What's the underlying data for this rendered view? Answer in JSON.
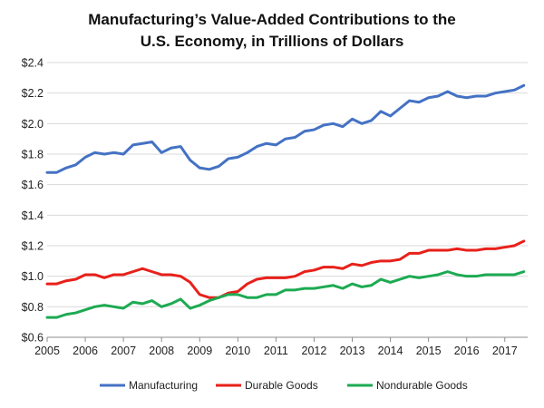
{
  "chart_data": {
    "type": "line",
    "title": [
      "Manufacturing’s Value-Added Contributions to the",
      "U.S. Economy, in Trillions of Dollars"
    ],
    "xlabel": "",
    "ylabel": "",
    "xlim": [
      2005,
      2017.6
    ],
    "ylim": [
      0.6,
      2.4
    ],
    "grid": true,
    "legend_position": "bottom",
    "x_ticks": [
      2005,
      2006,
      2007,
      2008,
      2009,
      2010,
      2011,
      2012,
      2013,
      2014,
      2015,
      2016,
      2017
    ],
    "x_tick_labels": [
      "2005",
      "2006",
      "2007",
      "2008",
      "2009",
      "2010",
      "2011",
      "2012",
      "2013",
      "2014",
      "2015",
      "2016",
      "2017"
    ],
    "y_ticks": [
      0.6,
      0.8,
      1.0,
      1.2,
      1.4,
      1.6,
      1.8,
      2.0,
      2.2,
      2.4
    ],
    "y_tick_labels": [
      "$0.6",
      "$0.8",
      "$1.0",
      "$1.2",
      "$1.4",
      "$1.6",
      "$1.8",
      "$2.0",
      "$2.2",
      "$2.4"
    ],
    "x": [
      2005.0,
      2005.25,
      2005.5,
      2005.75,
      2006.0,
      2006.25,
      2006.5,
      2006.75,
      2007.0,
      2007.25,
      2007.5,
      2007.75,
      2008.0,
      2008.25,
      2008.5,
      2008.75,
      2009.0,
      2009.25,
      2009.5,
      2009.75,
      2010.0,
      2010.25,
      2010.5,
      2010.75,
      2011.0,
      2011.25,
      2011.5,
      2011.75,
      2012.0,
      2012.25,
      2012.5,
      2012.75,
      2013.0,
      2013.25,
      2013.5,
      2013.75,
      2014.0,
      2014.25,
      2014.5,
      2014.75,
      2015.0,
      2015.25,
      2015.5,
      2015.75,
      2016.0,
      2016.25,
      2016.5,
      2016.75,
      2017.0,
      2017.25,
      2017.5
    ],
    "series": [
      {
        "name": "Manufacturing",
        "color": "#4472c4",
        "values": [
          1.68,
          1.68,
          1.71,
          1.73,
          1.78,
          1.81,
          1.8,
          1.81,
          1.8,
          1.86,
          1.87,
          1.88,
          1.81,
          1.84,
          1.85,
          1.76,
          1.71,
          1.7,
          1.72,
          1.77,
          1.78,
          1.81,
          1.85,
          1.87,
          1.86,
          1.9,
          1.91,
          1.95,
          1.96,
          1.99,
          2.0,
          1.98,
          2.03,
          2.0,
          2.02,
          2.08,
          2.05,
          2.1,
          2.15,
          2.14,
          2.17,
          2.18,
          2.21,
          2.18,
          2.17,
          2.18,
          2.18,
          2.2,
          2.21,
          2.22,
          2.25
        ]
      },
      {
        "name": "Durable Goods",
        "color": "#e8201a",
        "values": [
          0.95,
          0.95,
          0.97,
          0.98,
          1.01,
          1.01,
          0.99,
          1.01,
          1.01,
          1.03,
          1.05,
          1.03,
          1.01,
          1.01,
          1.0,
          0.96,
          0.88,
          0.86,
          0.86,
          0.89,
          0.9,
          0.95,
          0.98,
          0.99,
          0.99,
          0.99,
          1.0,
          1.03,
          1.04,
          1.06,
          1.06,
          1.05,
          1.08,
          1.07,
          1.09,
          1.1,
          1.1,
          1.11,
          1.15,
          1.15,
          1.17,
          1.17,
          1.17,
          1.18,
          1.17,
          1.17,
          1.18,
          1.18,
          1.19,
          1.2,
          1.23
        ]
      },
      {
        "name": "Nondurable Goods",
        "color": "#1daa52",
        "values": [
          0.73,
          0.73,
          0.75,
          0.76,
          0.78,
          0.8,
          0.81,
          0.8,
          0.79,
          0.83,
          0.82,
          0.84,
          0.8,
          0.82,
          0.85,
          0.79,
          0.81,
          0.84,
          0.86,
          0.88,
          0.88,
          0.86,
          0.86,
          0.88,
          0.88,
          0.91,
          0.91,
          0.92,
          0.92,
          0.93,
          0.94,
          0.92,
          0.95,
          0.93,
          0.94,
          0.98,
          0.96,
          0.98,
          1.0,
          0.99,
          1.0,
          1.01,
          1.03,
          1.01,
          1.0,
          1.0,
          1.01,
          1.01,
          1.01,
          1.01,
          1.03
        ]
      }
    ]
  }
}
